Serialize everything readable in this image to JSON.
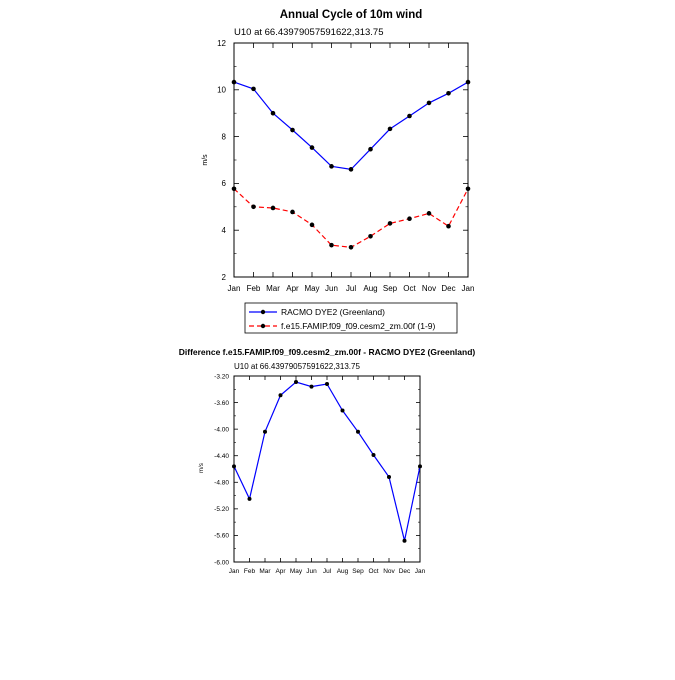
{
  "chart_data": [
    {
      "type": "line",
      "title": "Annual Cycle of 10m wind",
      "subtitle": "U10 at 66.43979057591622,313.75",
      "xlabel": "",
      "ylabel": "m/s",
      "categories": [
        "Jan",
        "Feb",
        "Mar",
        "Apr",
        "May",
        "Jun",
        "Jul",
        "Aug",
        "Sep",
        "Oct",
        "Nov",
        "Dec",
        "Jan"
      ],
      "ylim": [
        2,
        12
      ],
      "yticks": [
        "2",
        "4",
        "6",
        "8",
        "10",
        "12"
      ],
      "legend_position": "bottom",
      "series": [
        {
          "name": "RACMO DYE2 (Greenland)",
          "color": "#0000ff",
          "dash": "solid",
          "values": [
            10.33,
            10.04,
            9.0,
            8.28,
            7.53,
            6.73,
            6.6,
            7.46,
            8.33,
            8.88,
            9.44,
            9.85,
            10.33
          ]
        },
        {
          "name": "f.e15.FAMIP.f09_f09.cesm2_zm.00f (1-9)",
          "color": "#ff0000",
          "dash": "dashed",
          "values": [
            5.77,
            5.0,
            4.95,
            4.78,
            4.23,
            3.36,
            3.27,
            3.74,
            4.29,
            4.49,
            4.72,
            4.17,
            5.77
          ]
        }
      ]
    },
    {
      "type": "line",
      "title": "Difference f.e15.FAMIP.f09_f09.cesm2_zm.00f - RACMO DYE2 (Greenland)",
      "subtitle": "U10 at 66.43979057591622,313.75",
      "xlabel": "",
      "ylabel": "m/s",
      "categories": [
        "Jan",
        "Feb",
        "Mar",
        "Apr",
        "May",
        "Jun",
        "Jul",
        "Aug",
        "Sep",
        "Oct",
        "Nov",
        "Dec",
        "Jan"
      ],
      "ylim": [
        -6.0,
        -3.2
      ],
      "yticks": [
        "-6.00",
        "-5.60",
        "-5.20",
        "-4.80",
        "-4.40",
        "-4.00",
        "-3.60",
        "-3.20"
      ],
      "series": [
        {
          "color": "#0000ff",
          "dash": "solid",
          "values": [
            -4.56,
            -5.05,
            -4.04,
            -3.49,
            -3.29,
            -3.36,
            -3.32,
            -3.72,
            -4.04,
            -4.39,
            -4.72,
            -5.68,
            -4.56
          ]
        }
      ]
    }
  ]
}
